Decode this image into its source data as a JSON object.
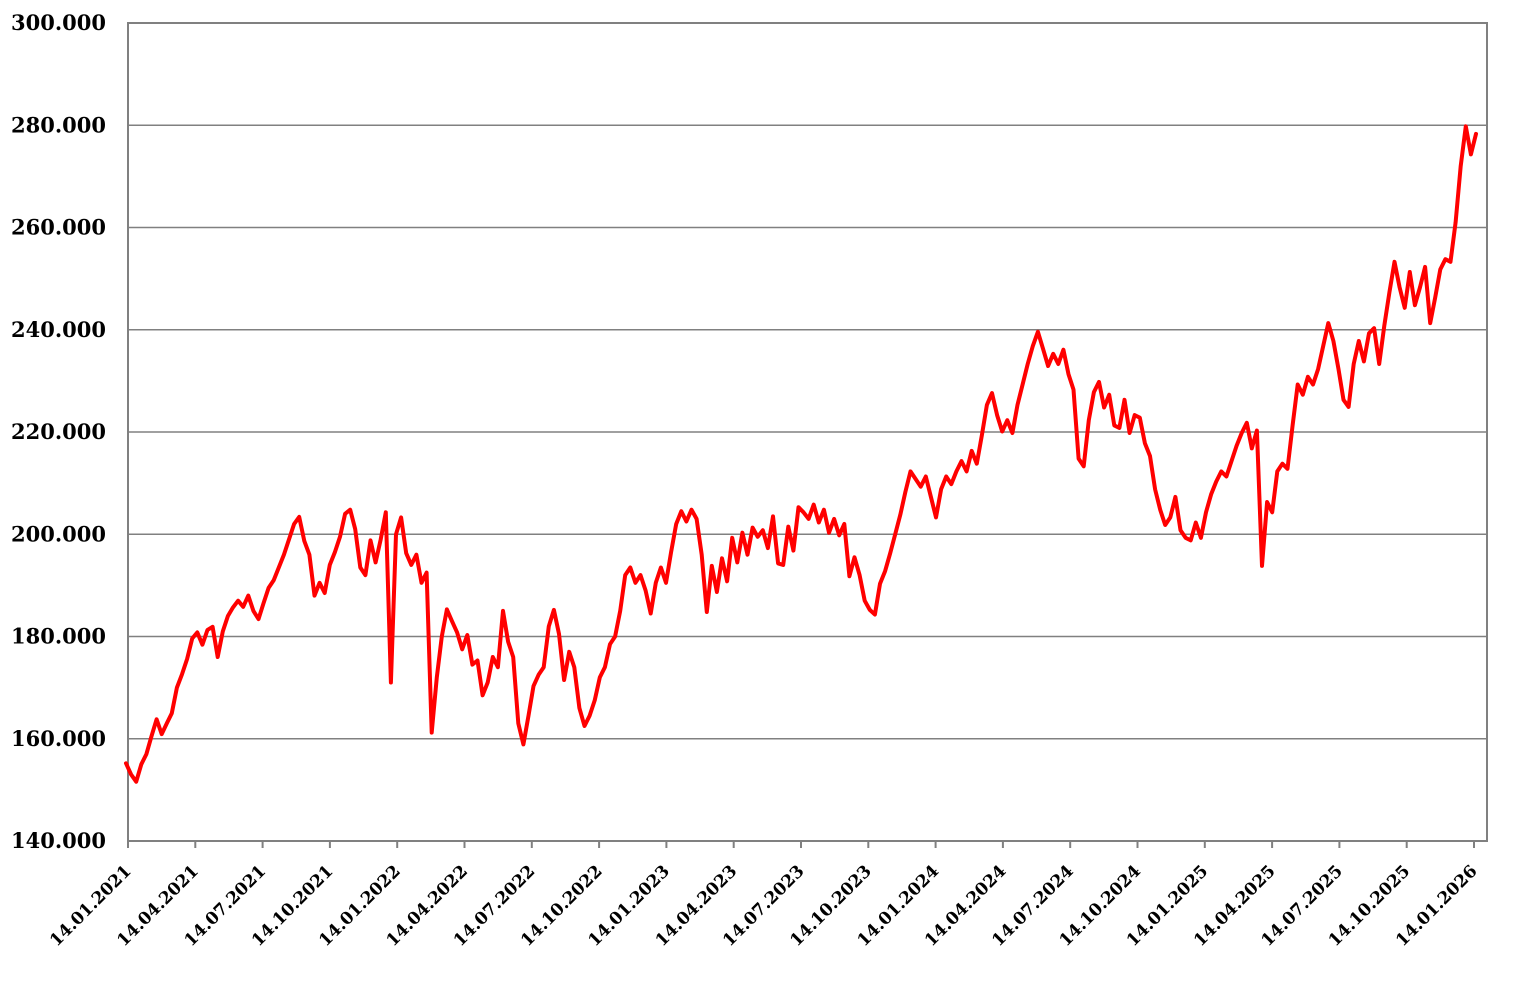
{
  "page": {
    "background": "#ffffff",
    "description": "Borderless line chart of a price/index level over five years, red line on white with horizontal gray gridlines"
  },
  "chart_data": {
    "type": "line",
    "title": "",
    "legend": "none",
    "grid": "horizontal",
    "line_color": "#ff0000",
    "grid_color": "#808080",
    "axis_color": "#808080",
    "text_color": "#000000",
    "x_label_rotation_deg": 45,
    "ylim": [
      140,
      300
    ],
    "y_ticks": [
      140,
      160,
      180,
      200,
      220,
      240,
      260,
      280,
      300
    ],
    "y_tick_labels": [
      "140.000",
      "160.000",
      "180.000",
      "200.000",
      "220.000",
      "240.000",
      "260.000",
      "280.000",
      "300.000"
    ],
    "y_value_format": "thousands with dot separator (155.2 plotted = label 155.200)",
    "x_range": {
      "start": "14.01.2021",
      "end": "14.01.2026"
    },
    "x_tick_labels": [
      "14.01.2021",
      "14.04.2021",
      "14.07.2021",
      "14.10.2021",
      "14.01.2022",
      "14.04.2022",
      "14.07.2022",
      "14.10.2022",
      "14.01.2023",
      "14.04.2023",
      "14.07.2023",
      "14.10.2023",
      "14.01.2024",
      "14.04.2024",
      "14.07.2024",
      "14.10.2024",
      "14.01.2025",
      "14.04.2025",
      "14.07.2025",
      "14.10.2025",
      "14.01.2026"
    ],
    "series": [
      {
        "name": "value",
        "sampling": "approx. weekly, 266 points spanning 14.01.2021 to mid-01.2026, values estimated from gridlines",
        "values": [
          155.2,
          153.0,
          151.6,
          155.0,
          157.0,
          160.5,
          163.8,
          160.9,
          163.0,
          165.0,
          170.0,
          172.6,
          175.6,
          179.6,
          180.8,
          178.4,
          181.3,
          181.9,
          176.0,
          181.0,
          184.0,
          185.7,
          187.0,
          185.8,
          188.0,
          185.0,
          183.4,
          186.5,
          189.5,
          191.0,
          193.5,
          196.0,
          199.0,
          202.0,
          203.4,
          198.7,
          196.0,
          188.0,
          190.5,
          188.5,
          194.0,
          196.5,
          199.5,
          204.0,
          204.8,
          201.0,
          193.5,
          192.0,
          198.8,
          194.5,
          199.0,
          204.3,
          171.0,
          200.0,
          203.3,
          196.3,
          194.0,
          196.0,
          190.5,
          192.5,
          161.2,
          172.0,
          180.0,
          185.3,
          183.0,
          180.8,
          177.5,
          180.3,
          174.5,
          175.3,
          168.5,
          171.0,
          176.0,
          174.0,
          185.0,
          179.0,
          176.0,
          163.0,
          158.9,
          164.5,
          170.3,
          172.5,
          174.0,
          182.0,
          185.2,
          180.5,
          171.5,
          177.0,
          174.0,
          166.0,
          162.5,
          164.5,
          167.5,
          172.0,
          174.0,
          178.5,
          180.0,
          185.0,
          192.0,
          193.5,
          190.5,
          192.0,
          189.0,
          184.5,
          190.5,
          193.5,
          190.5,
          196.5,
          202.0,
          204.5,
          202.5,
          204.8,
          203.0,
          196.0,
          184.8,
          193.8,
          188.7,
          195.3,
          190.8,
          199.3,
          194.5,
          200.3,
          196.0,
          201.3,
          199.5,
          200.8,
          197.3,
          203.5,
          194.3,
          194.0,
          201.5,
          196.8,
          205.3,
          204.3,
          203.0,
          205.8,
          202.3,
          204.8,
          200.3,
          203.0,
          199.8,
          202.0,
          191.8,
          195.5,
          192.0,
          187.0,
          185.2,
          184.3,
          190.3,
          192.8,
          196.3,
          200.0,
          203.8,
          208.3,
          212.3,
          210.8,
          209.3,
          211.3,
          207.3,
          203.3,
          208.8,
          211.3,
          209.8,
          212.3,
          214.3,
          212.3,
          216.3,
          213.8,
          219.3,
          225.3,
          227.6,
          223.3,
          220.1,
          222.3,
          219.8,
          225.3,
          229.3,
          233.3,
          236.8,
          239.6,
          236.3,
          232.9,
          235.3,
          233.3,
          236.1,
          231.3,
          228.3,
          214.8,
          213.3,
          222.3,
          227.8,
          229.8,
          224.8,
          227.3,
          221.3,
          220.8,
          226.3,
          219.8,
          223.3,
          222.8,
          217.8,
          215.3,
          208.8,
          204.8,
          201.8,
          203.3,
          207.3,
          200.8,
          199.3,
          198.8,
          202.3,
          199.3,
          204.3,
          207.8,
          210.3,
          212.3,
          211.3,
          214.3,
          217.3,
          219.8,
          221.8,
          216.8,
          220.3,
          193.8,
          206.3,
          204.3,
          212.3,
          213.8,
          212.8,
          221.3,
          229.3,
          227.3,
          230.8,
          229.3,
          232.3,
          236.8,
          241.3,
          237.8,
          232.3,
          226.3,
          224.9,
          233.3,
          237.8,
          233.8,
          239.3,
          240.3,
          233.3,
          240.8,
          247.3,
          253.3,
          248.3,
          244.3,
          251.3,
          244.8,
          248.3,
          252.3,
          241.3,
          246.3,
          251.8,
          253.8,
          253.3,
          261.0,
          272.0,
          279.8,
          274.3,
          278.3
        ]
      }
    ]
  }
}
